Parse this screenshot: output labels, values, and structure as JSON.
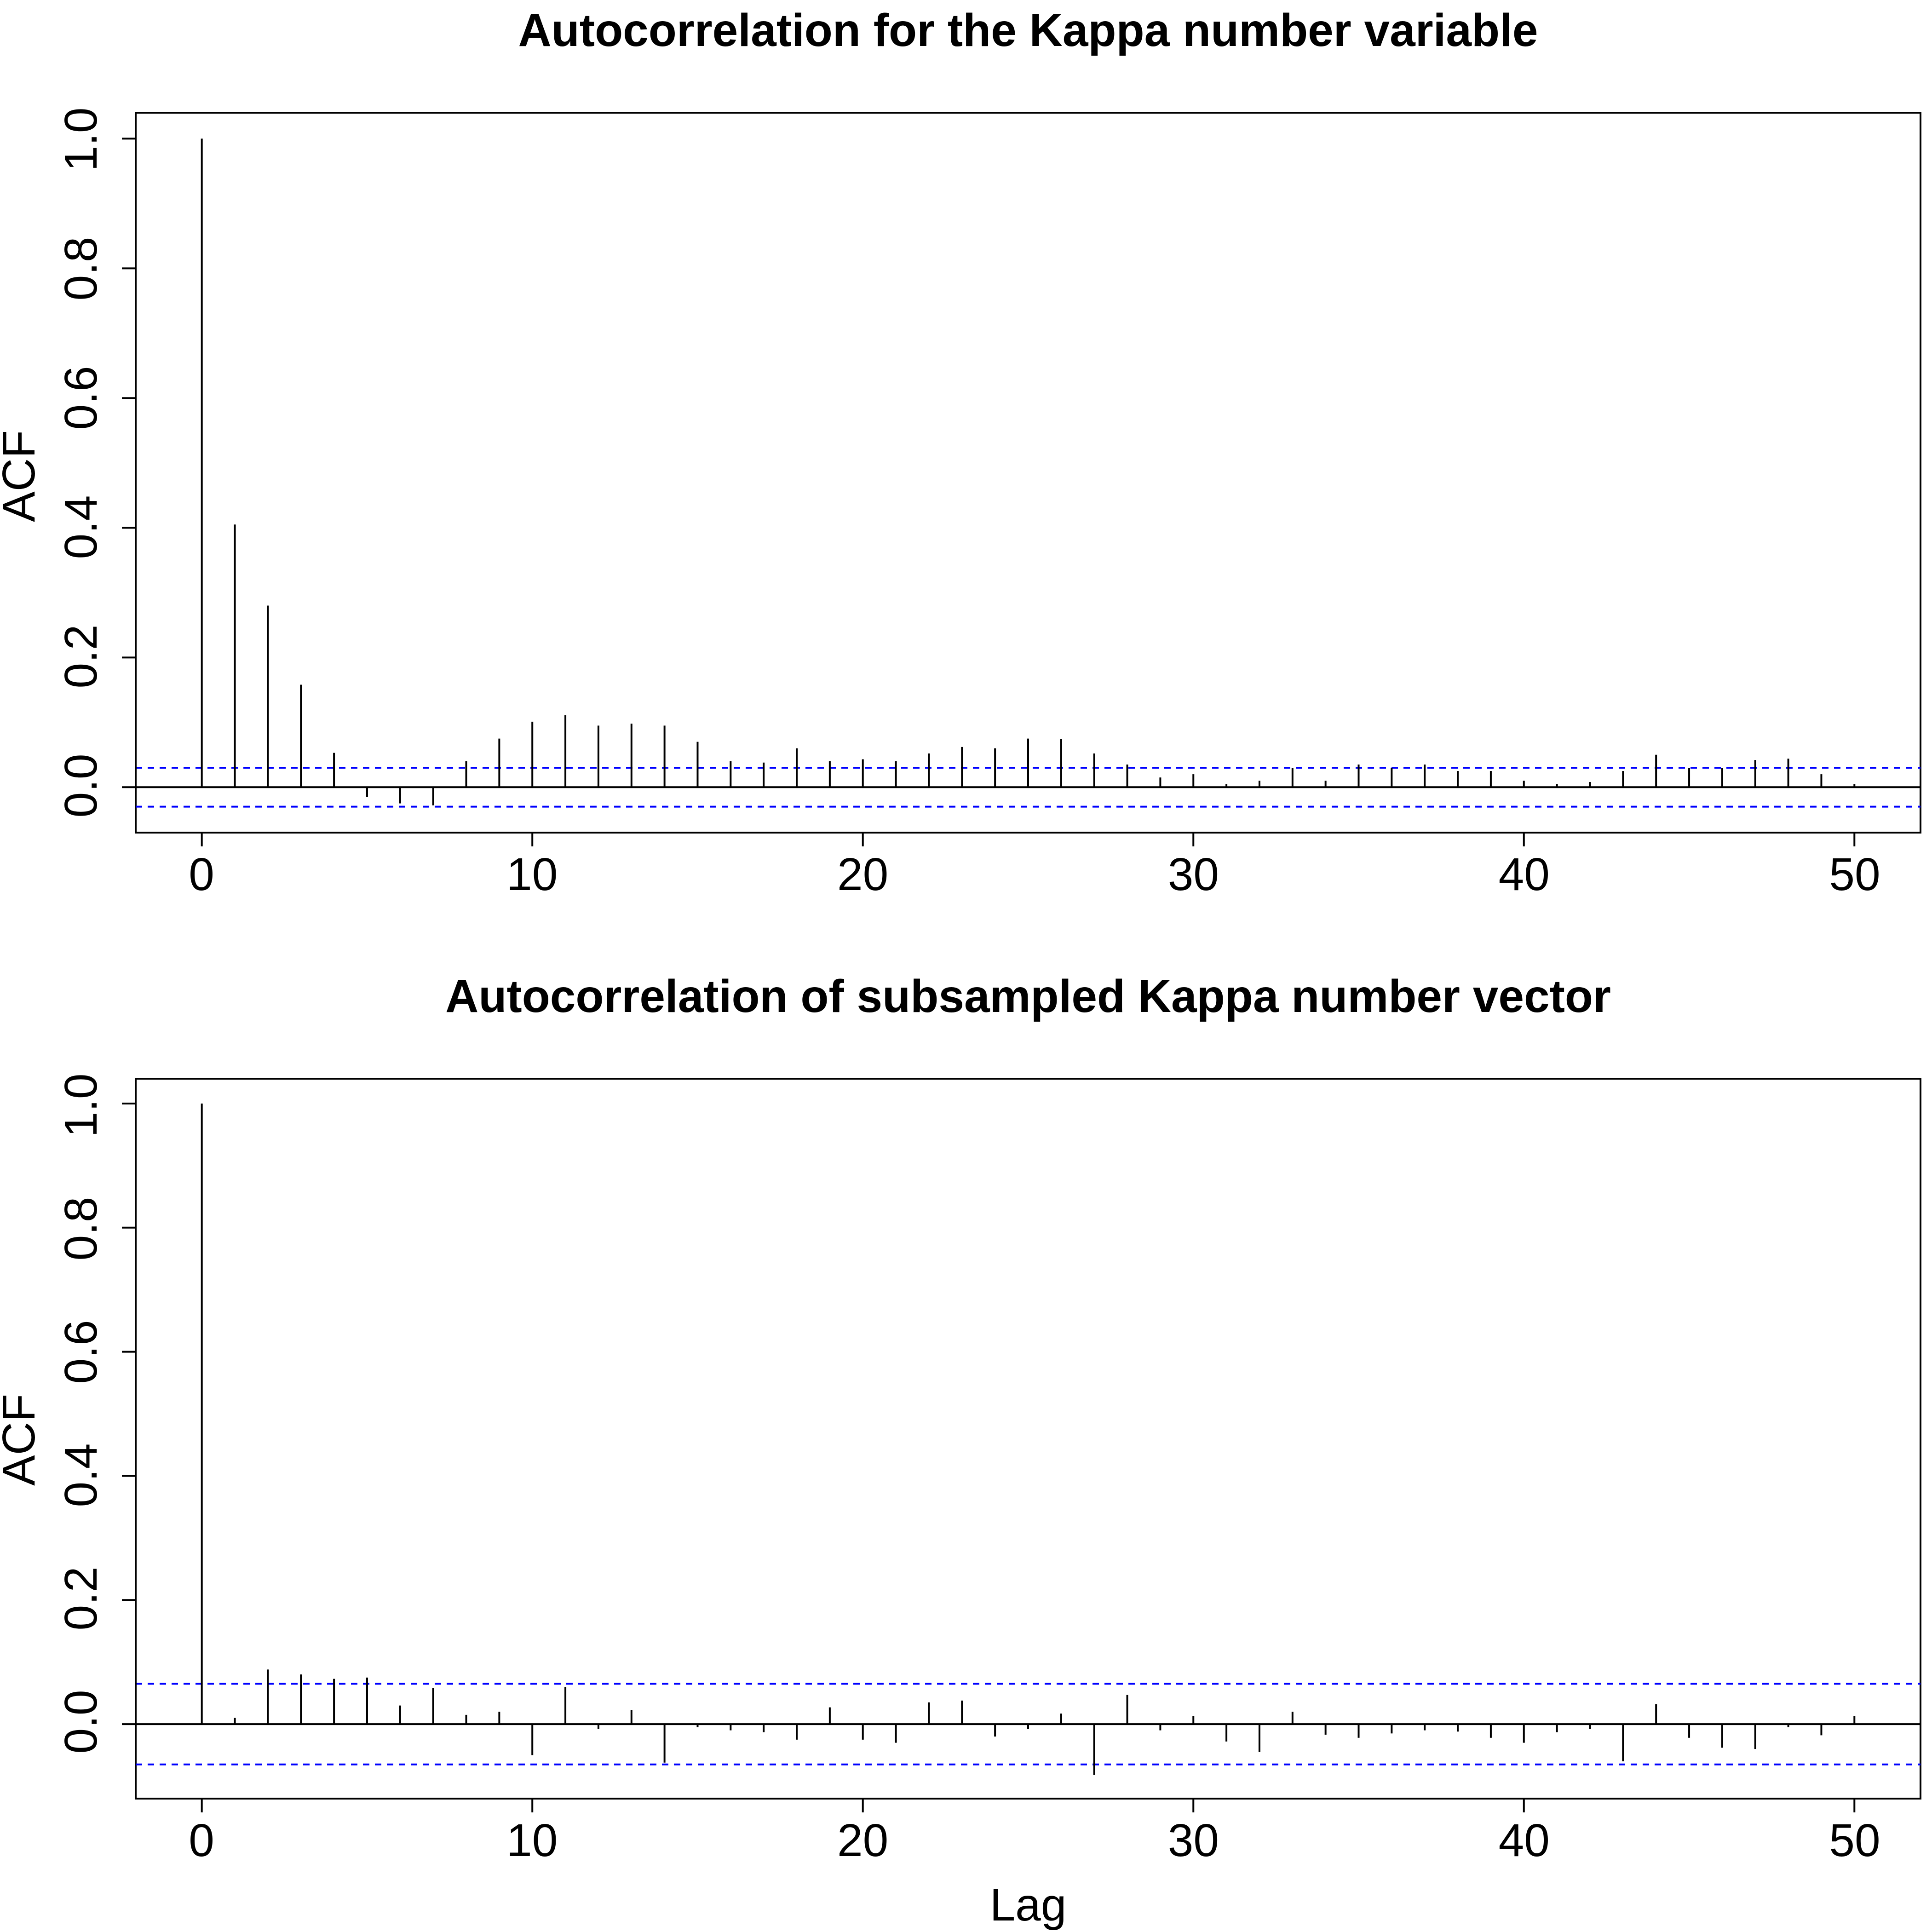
{
  "chart_data": [
    {
      "type": "bar",
      "title": "Autocorrelation for the Kappa number variable",
      "xlabel": "",
      "ylabel": "ACF",
      "xlim": [
        -2,
        52
      ],
      "ylim": [
        -0.07,
        1.04
      ],
      "x_ticks": [
        "0",
        "10",
        "20",
        "30",
        "40",
        "50"
      ],
      "y_ticks": [
        "0.0",
        "0.2",
        "0.4",
        "0.6",
        "0.8",
        "1.0"
      ],
      "confidence_bounds": [
        0.03,
        -0.03
      ],
      "confidence_color": "#0000ff",
      "x": [
        0,
        1,
        2,
        3,
        4,
        5,
        6,
        7,
        8,
        9,
        10,
        11,
        12,
        13,
        14,
        15,
        16,
        17,
        18,
        19,
        20,
        21,
        22,
        23,
        24,
        25,
        26,
        27,
        28,
        29,
        30,
        31,
        32,
        33,
        34,
        35,
        36,
        37,
        38,
        39,
        40,
        41,
        42,
        43,
        44,
        45,
        46,
        47,
        48,
        49,
        50
      ],
      "values": [
        1.0,
        0.405,
        0.28,
        0.158,
        0.053,
        -0.015,
        -0.025,
        -0.028,
        0.04,
        0.075,
        0.101,
        0.111,
        0.095,
        0.098,
        0.095,
        0.07,
        0.04,
        0.038,
        0.06,
        0.04,
        0.043,
        0.04,
        0.052,
        0.062,
        0.06,
        0.075,
        0.074,
        0.052,
        0.035,
        0.015,
        0.02,
        0.005,
        0.01,
        0.03,
        0.01,
        0.035,
        0.03,
        0.035,
        0.025,
        0.025,
        0.01,
        0.005,
        0.008,
        0.025,
        0.05,
        0.03,
        0.03,
        0.042,
        0.044,
        0.02,
        0.005
      ]
    },
    {
      "type": "bar",
      "title": "Autocorrelation of subsampled Kappa number vector",
      "xlabel": "Lag",
      "ylabel": "ACF",
      "xlim": [
        -2,
        52
      ],
      "ylim": [
        -0.12,
        1.04
      ],
      "x_ticks": [
        "0",
        "10",
        "20",
        "30",
        "40",
        "50"
      ],
      "y_ticks": [
        "0.0",
        "0.2",
        "0.4",
        "0.6",
        "0.8",
        "1.0"
      ],
      "confidence_bounds": [
        0.065,
        -0.065
      ],
      "confidence_color": "#0000ff",
      "x": [
        0,
        1,
        2,
        3,
        4,
        5,
        6,
        7,
        8,
        9,
        10,
        11,
        12,
        13,
        14,
        15,
        16,
        17,
        18,
        19,
        20,
        21,
        22,
        23,
        24,
        25,
        26,
        27,
        28,
        29,
        30,
        31,
        32,
        33,
        34,
        35,
        36,
        37,
        38,
        39,
        40,
        41,
        42,
        43,
        44,
        45,
        46,
        47,
        48,
        49,
        50
      ],
      "values": [
        1.0,
        0.01,
        0.088,
        0.08,
        0.073,
        0.075,
        0.03,
        0.058,
        0.015,
        0.02,
        -0.05,
        0.06,
        -0.008,
        0.023,
        -0.062,
        -0.005,
        -0.01,
        -0.013,
        -0.025,
        0.027,
        -0.025,
        -0.03,
        0.035,
        0.038,
        -0.02,
        -0.008,
        0.017,
        -0.082,
        0.047,
        -0.01,
        0.013,
        -0.028,
        -0.045,
        0.02,
        -0.017,
        -0.022,
        -0.015,
        -0.01,
        -0.012,
        -0.022,
        -0.03,
        -0.013,
        -0.008,
        -0.06,
        0.032,
        -0.022,
        -0.038,
        -0.04,
        -0.005,
        -0.018,
        0.013
      ]
    }
  ]
}
